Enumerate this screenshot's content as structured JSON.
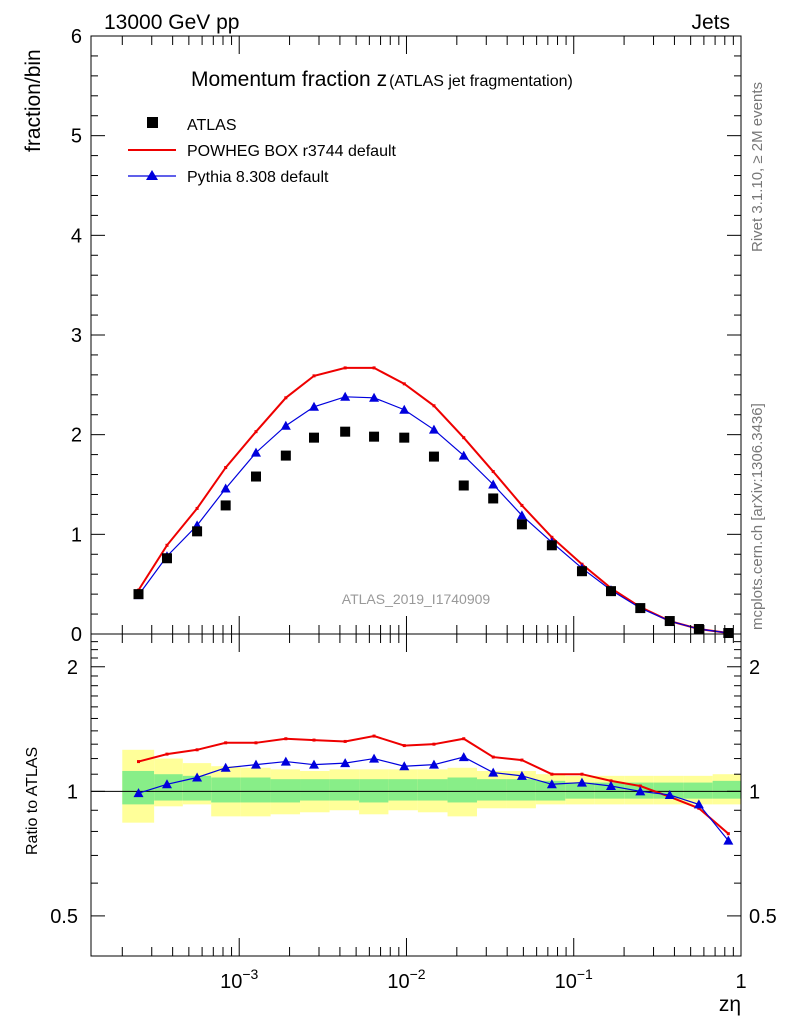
{
  "header": {
    "energy": "13000 GeV pp",
    "category": "Jets"
  },
  "side_text": {
    "rivet": "Rivet 3.1.10, ≥ 2M events",
    "mcplots": "mcplots.cern.ch [arXiv:1306.3436]"
  },
  "chart_data": [
    {
      "type": "scatter",
      "title": "Momentum fraction z",
      "subtitle": "(ATLAS jet fragmentation)",
      "ylabel": "fraction/bin",
      "xlabel": "zη",
      "xscale": "log",
      "xlim": [
        0.00013,
        1.0
      ],
      "ylim": [
        0,
        6
      ],
      "yticks": [
        0,
        1,
        2,
        3,
        4,
        5,
        6
      ],
      "watermark": "ATLAS_2019_I1740909",
      "legend_position": "top-left",
      "x": [
        0.00025,
        0.00037,
        0.00056,
        0.00083,
        0.00126,
        0.0019,
        0.0028,
        0.0043,
        0.0064,
        0.0097,
        0.0146,
        0.022,
        0.033,
        0.049,
        0.074,
        0.112,
        0.167,
        0.25,
        0.375,
        0.56,
        0.84
      ],
      "series": [
        {
          "name": "ATLAS",
          "marker": "square",
          "color": "#000000",
          "values": [
            0.4,
            0.76,
            1.03,
            1.29,
            1.58,
            1.79,
            1.97,
            2.03,
            1.98,
            1.97,
            1.78,
            1.49,
            1.36,
            1.1,
            0.89,
            0.63,
            0.43,
            0.26,
            0.13,
            0.05,
            0.01
          ]
        },
        {
          "name": "POWHEG BOX r3744 default",
          "marker": "line",
          "color": "#ee0000",
          "values": [
            0.44,
            0.89,
            1.26,
            1.67,
            2.03,
            2.37,
            2.59,
            2.67,
            2.67,
            2.51,
            2.29,
            1.97,
            1.63,
            1.29,
            0.97,
            0.7,
            0.46,
            0.27,
            0.13,
            0.05,
            0.01
          ]
        },
        {
          "name": "Pythia 8.308 default",
          "marker": "triangle",
          "color": "#0000dd",
          "values": [
            0.39,
            0.78,
            1.09,
            1.46,
            1.82,
            2.09,
            2.28,
            2.38,
            2.37,
            2.25,
            2.05,
            1.79,
            1.5,
            1.19,
            0.92,
            0.66,
            0.44,
            0.26,
            0.13,
            0.05,
            0.01
          ]
        }
      ]
    },
    {
      "type": "line",
      "ylabel": "Ratio to ATLAS",
      "xlabel": "zη",
      "xscale": "log",
      "yscale": "log",
      "xlim": [
        0.00013,
        1.0
      ],
      "ylim": [
        0.4,
        2.4
      ],
      "yticks": [
        0.5,
        1,
        2
      ],
      "xticks": [
        0.001,
        0.01,
        0.1,
        1
      ],
      "xtick_labels": [
        "10",
        "10",
        "10",
        "1"
      ],
      "xtick_exponents": [
        "−3",
        "−2",
        "−1",
        ""
      ],
      "x": [
        0.00025,
        0.00037,
        0.00056,
        0.00083,
        0.00126,
        0.0019,
        0.0028,
        0.0043,
        0.0064,
        0.0097,
        0.0146,
        0.022,
        0.033,
        0.049,
        0.074,
        0.112,
        0.167,
        0.25,
        0.375,
        0.56,
        0.84
      ],
      "bands": {
        "bin_edges": [
          0.0002,
          0.00031,
          0.00046,
          0.00068,
          0.00102,
          0.00154,
          0.00231,
          0.00347,
          0.00521,
          0.0078,
          0.0117,
          0.0176,
          0.0264,
          0.0396,
          0.0594,
          0.0891,
          0.1337,
          0.2005,
          0.3008,
          0.451,
          0.677,
          1.0
        ],
        "yellow_lo": [
          0.84,
          0.92,
          0.93,
          0.87,
          0.87,
          0.88,
          0.89,
          0.9,
          0.88,
          0.9,
          0.89,
          0.87,
          0.91,
          0.91,
          0.93,
          0.93,
          0.93,
          0.93,
          0.93,
          0.93,
          0.93
        ],
        "yellow_hi": [
          1.26,
          1.2,
          1.17,
          1.15,
          1.14,
          1.13,
          1.12,
          1.13,
          1.13,
          1.13,
          1.13,
          1.14,
          1.12,
          1.12,
          1.1,
          1.09,
          1.09,
          1.09,
          1.09,
          1.09,
          1.1
        ],
        "green_lo": [
          0.93,
          0.95,
          0.95,
          0.94,
          0.94,
          0.94,
          0.95,
          0.95,
          0.94,
          0.95,
          0.95,
          0.94,
          0.95,
          0.95,
          0.95,
          0.96,
          0.96,
          0.96,
          0.96,
          0.96,
          0.96
        ],
        "green_hi": [
          1.12,
          1.1,
          1.09,
          1.08,
          1.08,
          1.07,
          1.07,
          1.07,
          1.07,
          1.07,
          1.07,
          1.08,
          1.07,
          1.07,
          1.06,
          1.05,
          1.05,
          1.05,
          1.05,
          1.05,
          1.06
        ],
        "yellow_color": "#ffff99",
        "green_color": "#88ee88"
      },
      "series": [
        {
          "name": "POWHEG BOX r3744 default",
          "color": "#ee0000",
          "values": [
            1.18,
            1.23,
            1.26,
            1.31,
            1.31,
            1.34,
            1.33,
            1.32,
            1.36,
            1.29,
            1.3,
            1.34,
            1.21,
            1.19,
            1.1,
            1.1,
            1.06,
            1.03,
            0.97,
            0.91,
            0.79
          ]
        },
        {
          "name": "Pythia 8.308 default",
          "color": "#0000dd",
          "values": [
            0.99,
            1.04,
            1.08,
            1.14,
            1.16,
            1.18,
            1.16,
            1.17,
            1.2,
            1.15,
            1.16,
            1.21,
            1.11,
            1.09,
            1.04,
            1.05,
            1.03,
            1.0,
            0.98,
            0.93,
            0.76
          ]
        }
      ]
    }
  ]
}
